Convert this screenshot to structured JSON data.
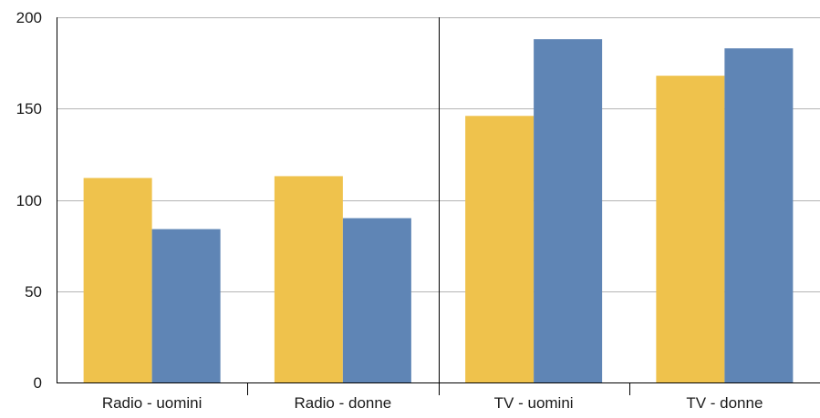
{
  "chart_data": {
    "type": "bar",
    "title": "",
    "xlabel": "",
    "ylabel": "",
    "categories": [
      "Radio - uomini",
      "Radio - donne",
      "TV - uomini",
      "TV - donne"
    ],
    "series": [
      {
        "color": "#EFC24C",
        "values": [
          112,
          113,
          146,
          168
        ]
      },
      {
        "color": "#5F85B5",
        "values": [
          84,
          90,
          188,
          183
        ]
      }
    ],
    "ylim": [
      0,
      200
    ],
    "yticks": [
      0,
      50,
      100,
      150,
      200
    ],
    "ytick_labels": [
      "0",
      "50",
      "100",
      "150",
      "200"
    ],
    "grid": true,
    "legend": "none",
    "divider_between_categories": [
      2,
      3
    ]
  }
}
